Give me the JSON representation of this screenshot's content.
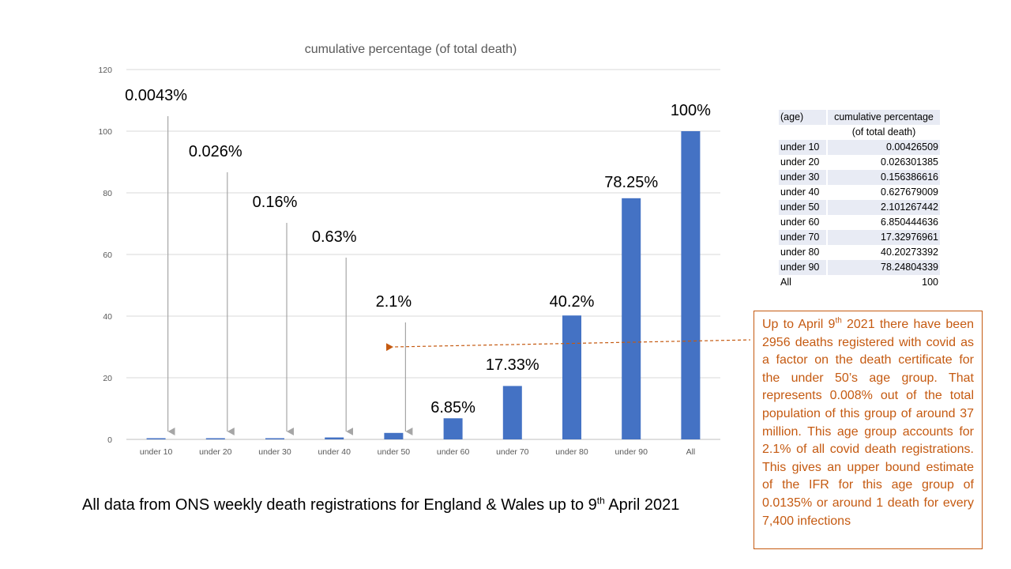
{
  "chart_data": {
    "type": "bar",
    "title": "cumulative percentage (of total death)",
    "categories": [
      "under 10",
      "under 20",
      "under 30",
      "under 40",
      "under 50",
      "under 60",
      "under 70",
      "under 80",
      "under 90",
      "All"
    ],
    "values": [
      0.00426509,
      0.026301385,
      0.156386616,
      0.627679009,
      2.101267442,
      6.850444636,
      17.32976961,
      40.20273392,
      78.24804339,
      100
    ],
    "ylim": [
      0,
      120
    ],
    "yticks": [
      "0",
      "20",
      "40",
      "60",
      "80",
      "100",
      "120"
    ],
    "grid": true,
    "bar_color": "#4472c4",
    "data_labels": [
      "0.0043%",
      "0.026%",
      "0.16%",
      "0.63%",
      "2.1%",
      "6.85%",
      "17.33%",
      "40.2%",
      "78.25%",
      "100%"
    ],
    "xlabel": "",
    "ylabel": ""
  },
  "table": {
    "header_age": "(age)",
    "header_value_line1": "cumulative percentage",
    "header_value_line2": "(of total death)",
    "rows": [
      {
        "age": "under 10",
        "value": "0.00426509"
      },
      {
        "age": "under 20",
        "value": "0.026301385"
      },
      {
        "age": "under 30",
        "value": "0.156386616"
      },
      {
        "age": "under 40",
        "value": "0.627679009"
      },
      {
        "age": "under 50",
        "value": "2.101267442"
      },
      {
        "age": "under 60",
        "value": "6.850444636"
      },
      {
        "age": "under 70",
        "value": "17.32976961"
      },
      {
        "age": "under 80",
        "value": "40.20273392"
      },
      {
        "age": "under 90",
        "value": "78.24804339"
      },
      {
        "age": "All",
        "value": "100"
      }
    ]
  },
  "note": {
    "p1": "Up to April 9",
    "sup1": "th",
    "p2": " 2021 there have been 2956 deaths registered with covid as a factor on the death certificate for the under 50’s age group. That represents 0.008% out of the total population of this group of around 37 million. This age group accounts for 2.1% of all covid death registrations. This gives an upper bound estimate of the IFR for this age group of 0.0135% or around 1 death for every 7,400 infections"
  },
  "footer": {
    "text_before": "All data from ONS weekly death registrations for England & Wales up to 9",
    "sup": "th",
    "text_after": " April 2021"
  },
  "colors": {
    "bar": "#4472c4",
    "note": "#c55a11",
    "grid": "#d9d9d9",
    "arrow": "#a6a6a6"
  }
}
